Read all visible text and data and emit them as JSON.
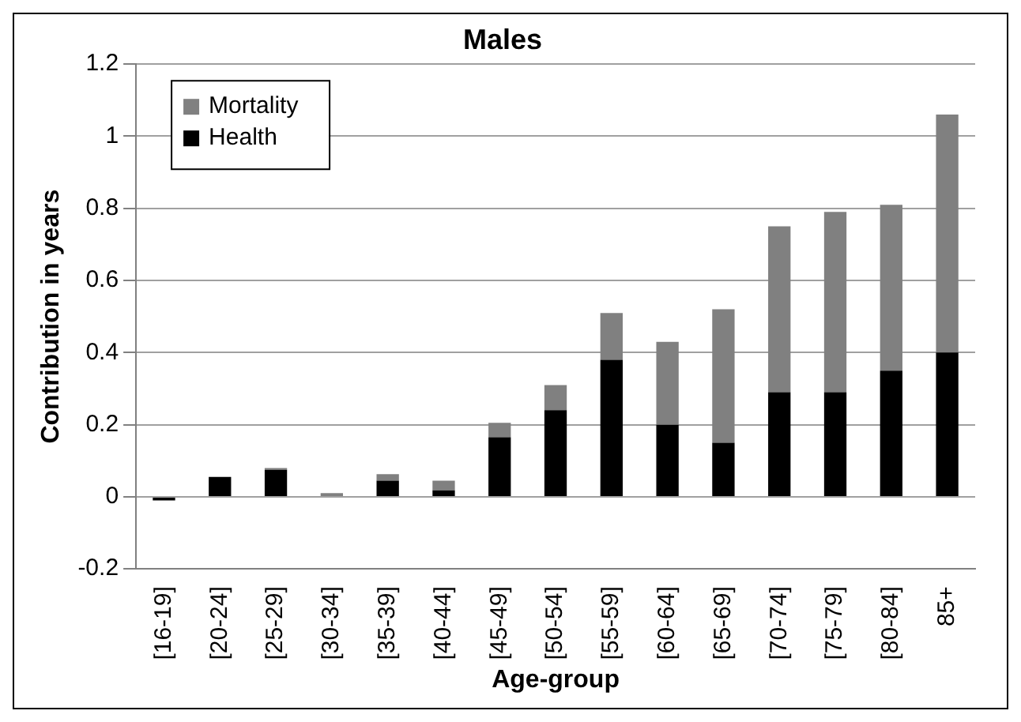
{
  "chart_data": {
    "type": "bar",
    "title": "Males",
    "xlabel": "Age-group",
    "ylabel": "Contribution in years",
    "categories": [
      "[16-19]",
      "[20-24]",
      "[25-29]",
      "[30-34]",
      "[35-39]",
      "[40-44]",
      "[45-49]",
      "[50-54]",
      "[55-59]",
      "[60-64]",
      "[65-69]",
      "[70-74]",
      "[75-79]",
      "[80-84]",
      "85+"
    ],
    "series": [
      {
        "name": "Health",
        "color": "#000000",
        "values": [
          -0.01,
          0.055,
          0.075,
          0,
          0.045,
          0.018,
          0.165,
          0.24,
          0.38,
          0.2,
          0.15,
          0.29,
          0.29,
          0.35,
          0.4
        ]
      },
      {
        "name": "Mortality",
        "color": "#808080",
        "values": [
          0,
          0,
          0.005,
          0.01,
          0.018,
          0.027,
          0.04,
          0.07,
          0.13,
          0.23,
          0.37,
          0.46,
          0.5,
          0.46,
          0.66
        ]
      }
    ],
    "stacked": true,
    "ylim": [
      -0.2,
      1.2
    ],
    "yticks": [
      -0.2,
      0,
      0.2,
      0.4,
      0.6,
      0.8,
      1,
      1.2
    ],
    "grid": "y",
    "legend": "top left"
  }
}
